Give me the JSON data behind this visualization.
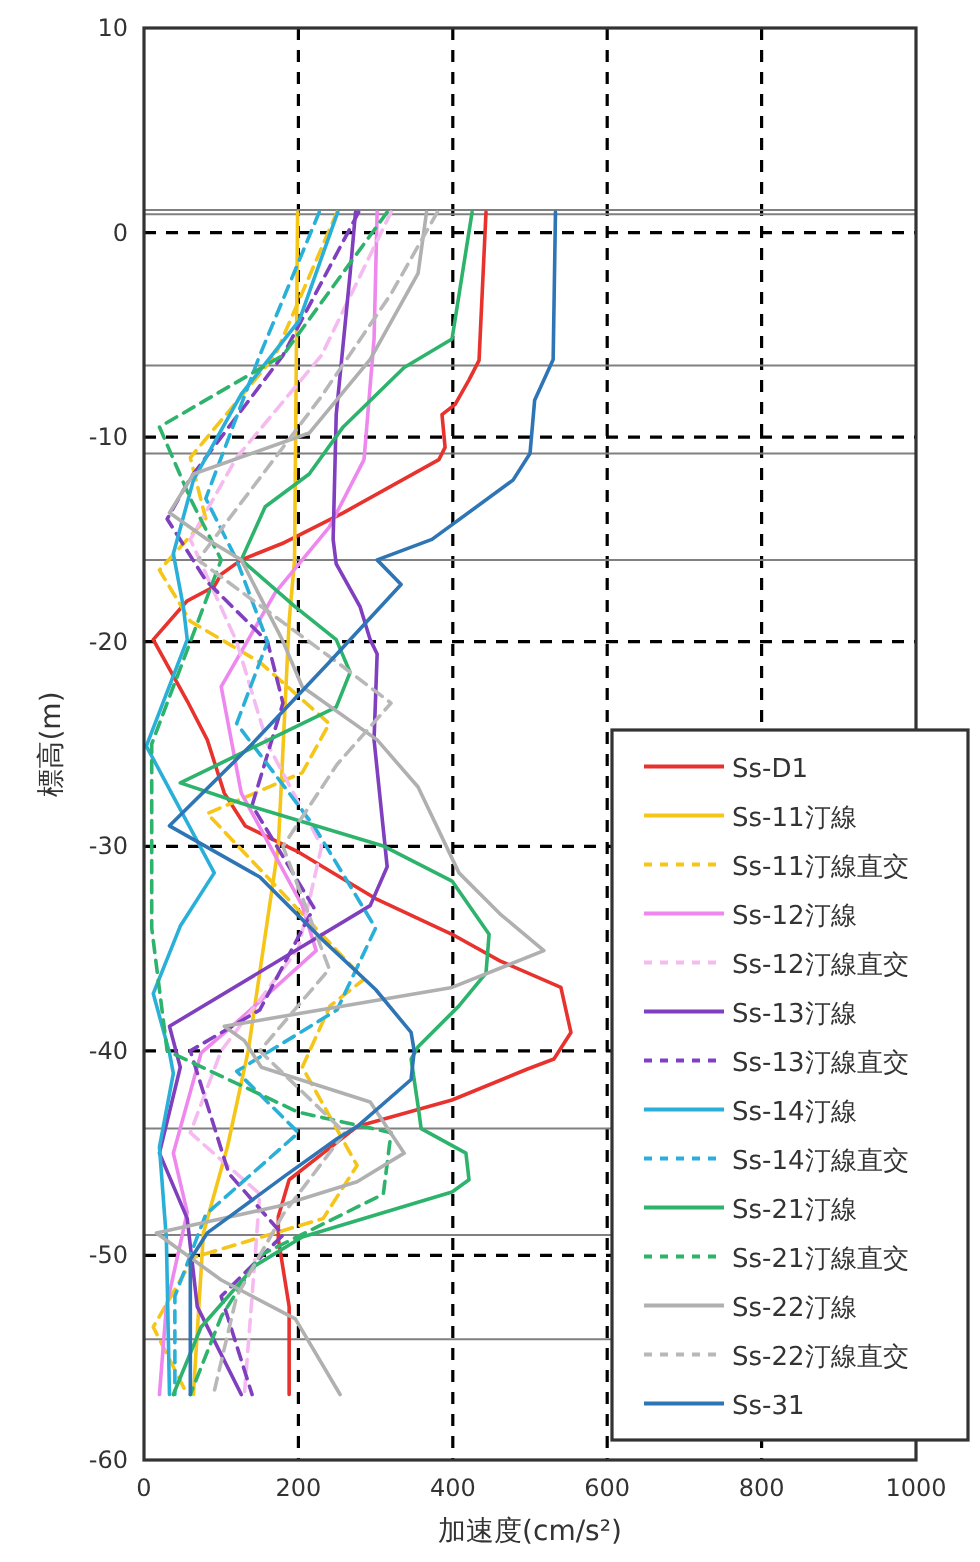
{
  "chart_data": {
    "type": "line",
    "xlabel": "加速度(cm/s²)",
    "ylabel": "標高(m)",
    "xlim": [
      0,
      1000
    ],
    "ylim": [
      -60,
      10
    ],
    "xticks": [
      0,
      200,
      400,
      600,
      800,
      1000
    ],
    "yticks": [
      -60,
      -50,
      -40,
      -30,
      -20,
      -10,
      0,
      10
    ],
    "grid": true,
    "legend": "bottom right",
    "ref_lines": [
      {
        "axis": "y",
        "value": 1.1,
        "color": "#808080"
      },
      {
        "axis": "y",
        "value": 0.9,
        "color": "#808080"
      },
      {
        "axis": "y",
        "value": -6.5,
        "color": "#808080"
      },
      {
        "axis": "y",
        "value": -10.8,
        "color": "#808080"
      },
      {
        "axis": "y",
        "value": -16,
        "color": "#808080"
      },
      {
        "axis": "y",
        "value": -43.8,
        "color": "#808080"
      },
      {
        "axis": "y",
        "value": -49,
        "color": "#808080"
      },
      {
        "axis": "y",
        "value": -54.1,
        "color": "#808080"
      }
    ],
    "series": [
      {
        "name": "Ss-D1",
        "color": "#e8322e",
        "line_style": "solid",
        "x": [
          443,
          434,
          421,
          403,
          386,
          390,
          382,
          258,
          179,
          126,
          100,
          91,
          56,
          12,
          56,
          82,
          104,
          131,
          201,
          302,
          399,
          461,
          540,
          553,
          531,
          496,
          399,
          276,
          232,
          188,
          174,
          174,
          188,
          188
        ],
        "values": [
          1,
          -6.25,
          -7.2,
          -8.4,
          -8.9,
          -10.5,
          -11.1,
          -13.7,
          -15.2,
          -16,
          -16.7,
          -17.3,
          -18,
          -19.9,
          -22.9,
          -24.8,
          -27.4,
          -29,
          -30.3,
          -32.6,
          -34.3,
          -35.6,
          -36.9,
          -39.1,
          -40.4,
          -40.9,
          -42.4,
          -43.7,
          -45,
          -46.3,
          -48.1,
          -49.2,
          -52.5,
          -56.8
        ]
      },
      {
        "name": "Ss-11汀線",
        "color": "#f5c518",
        "line_style": "solid",
        "x": [
          199,
          195,
          188,
          174,
          135,
          108,
          77,
          64
        ],
        "values": [
          1,
          -16,
          -19,
          -30,
          -40,
          -44.7,
          -48.9,
          -56.8
        ]
      },
      {
        "name": "Ss-11汀線直交",
        "color": "#f5c518",
        "line_style": "dashed",
        "x": [
          250,
          170,
          60,
          80,
          20,
          60,
          150,
          240,
          205,
          82,
          285,
          241,
          205,
          276,
          232,
          64,
          12,
          56
        ],
        "values": [
          1,
          -6,
          -11,
          -14,
          -16.5,
          -19,
          -21,
          -24,
          -26.4,
          -28.4,
          -36.5,
          -37.8,
          -40.8,
          -45.6,
          -48.2,
          -50.1,
          -53.5,
          -56.8
        ]
      },
      {
        "name": "Ss-12汀線",
        "color": "#ee88ee",
        "line_style": "solid",
        "x": [
          302,
          298,
          285,
          240,
          170,
          135,
          100,
          126,
          205,
          223,
          126,
          74,
          38,
          56,
          29,
          20
        ],
        "values": [
          1,
          -5.2,
          -11.1,
          -14.4,
          -17.6,
          -19.9,
          -22.2,
          -27.4,
          -32.9,
          -35.1,
          -38.4,
          -40.1,
          -45,
          -47.9,
          -52.5,
          -56.8
        ]
      },
      {
        "name": "Ss-12汀線直交",
        "color": "#f5bbf0",
        "line_style": "dashed",
        "x": [
          320,
          230,
          120,
          60,
          120,
          160,
          230,
          200,
          100,
          60,
          150,
          140,
          130
        ],
        "values": [
          1,
          -6,
          -11,
          -15,
          -20,
          -25,
          -30,
          -35,
          -40,
          -44,
          -47,
          -52,
          -56.8
        ]
      },
      {
        "name": "Ss-13汀線",
        "color": "#7f3fbf",
        "line_style": "solid",
        "x": [
          274,
          267,
          249,
          245,
          249,
          280,
          293,
          302,
          298,
          315,
          293,
          33,
          47,
          20,
          56,
          69,
          126
        ],
        "values": [
          1,
          -2,
          -8.9,
          -15,
          -16.2,
          -18.3,
          -19.9,
          -20.6,
          -24.8,
          -31,
          -32.9,
          -38.8,
          -40.8,
          -45,
          -48.2,
          -52.5,
          -56.8
        ]
      },
      {
        "name": "Ss-13汀線直交",
        "color": "#7f3fbf",
        "line_style": "dashed",
        "x": [
          278,
          180,
          60,
          30,
          80,
          160,
          180,
          140,
          220,
          150,
          60,
          110,
          180,
          100,
          140
        ],
        "values": [
          1,
          -6,
          -12,
          -14,
          -17,
          -20,
          -23,
          -28,
          -33,
          -38,
          -40,
          -46,
          -49,
          -52,
          -56.8
        ]
      },
      {
        "name": "Ss-14汀線",
        "color": "#2ab0d8",
        "line_style": "solid",
        "x": [
          251,
          201,
          126,
          64,
          38,
          51,
          56,
          3,
          91,
          47,
          12,
          33,
          38,
          20,
          29,
          33
        ],
        "values": [
          1,
          -4.3,
          -7.9,
          -12.1,
          -15.7,
          -18.3,
          -19.9,
          -25.1,
          -31.3,
          -33.9,
          -37.2,
          -40.1,
          -41.1,
          -44.7,
          -49.2,
          -56.8
        ]
      },
      {
        "name": "Ss-14汀線直交",
        "color": "#2ab0d8",
        "line_style": "dashed",
        "x": [
          227,
          150,
          80,
          120,
          160,
          120,
          220,
          300,
          250,
          120,
          200,
          80,
          40,
          40
        ],
        "values": [
          1,
          -6,
          -13,
          -16,
          -20,
          -24,
          -29,
          -34,
          -38,
          -41,
          -44,
          -48,
          -52,
          -56.8
        ]
      },
      {
        "name": "Ss-21汀線",
        "color": "#2db36b",
        "line_style": "solid",
        "x": [
          425,
          399,
          337,
          258,
          214,
          157,
          126,
          196,
          249,
          267,
          249,
          47,
          126,
          311,
          399,
          447,
          443,
          408,
          355,
          346,
          355,
          359,
          417,
          421,
          399,
          205,
          144,
          74,
          38
        ],
        "values": [
          1,
          -5.2,
          -6.6,
          -9.5,
          -11.8,
          -13.4,
          -16,
          -18.3,
          -19.9,
          -21.5,
          -23.2,
          -26.9,
          -27.9,
          -30,
          -31.7,
          -34.3,
          -36.2,
          -37.8,
          -39.8,
          -40.4,
          -42.7,
          -43.8,
          -45,
          -46.3,
          -46.9,
          -49.1,
          -50.5,
          -53.5,
          -56.8
        ]
      },
      {
        "name": "Ss-21汀線直交",
        "color": "#2db36b",
        "line_style": "dashed",
        "x": [
          315,
          180,
          20,
          60,
          100,
          60,
          10,
          10,
          30,
          200,
          320,
          310,
          150,
          100,
          60
        ],
        "values": [
          1,
          -6,
          -9.5,
          -13,
          -16,
          -20,
          -25,
          -34,
          -40,
          -43,
          -44,
          -47,
          -50,
          -53,
          -56.8
        ]
      },
      {
        "name": "Ss-22汀線",
        "color": "#b0b0b0",
        "line_style": "solid",
        "x": [
          366,
          355,
          293,
          214,
          64,
          33,
          82,
          126,
          179,
          205,
          302,
          355,
          408,
          461,
          518,
          399,
          104,
          130,
          152,
          293,
          337,
          276,
          174,
          16,
          100,
          196,
          254
        ],
        "values": [
          1,
          -2,
          -6.2,
          -9.8,
          -11.8,
          -13.7,
          -15,
          -16,
          -19.9,
          -22.2,
          -24.8,
          -27.1,
          -31.3,
          -33.3,
          -35.1,
          -36.9,
          -38.8,
          -39.5,
          -40.8,
          -42.5,
          -45,
          -46.4,
          -47.6,
          -48.9,
          -51.2,
          -53.1,
          -56.8
        ]
      },
      {
        "name": "Ss-22汀線直交",
        "color": "#b8b8b8",
        "line_style": "dashed",
        "x": [
          380,
          320,
          230,
          150,
          70,
          250,
          320,
          250,
          180,
          240,
          150,
          260,
          180,
          120,
          90
        ],
        "values": [
          1,
          -3,
          -8,
          -12,
          -16,
          -21,
          -23,
          -26,
          -30,
          -36,
          -40,
          -44,
          -48,
          -52,
          -56.8
        ]
      },
      {
        "name": "Ss-31",
        "color": "#2e75b6",
        "line_style": "solid",
        "x": [
          533,
          530,
          506,
          500,
          478,
          373,
          302,
          333,
          240,
          140,
          33,
          150,
          232,
          300,
          346,
          350,
          346,
          276,
          250,
          183,
          82,
          60,
          60
        ],
        "values": [
          1,
          -6.2,
          -8.2,
          -10.8,
          -12.1,
          -15,
          -16,
          -17.2,
          -21,
          -25,
          -29,
          -31.5,
          -34.6,
          -37,
          -39.1,
          -40,
          -41.4,
          -43.7,
          -44.3,
          -46.1,
          -48.9,
          -50.2,
          -56.8
        ]
      }
    ]
  }
}
